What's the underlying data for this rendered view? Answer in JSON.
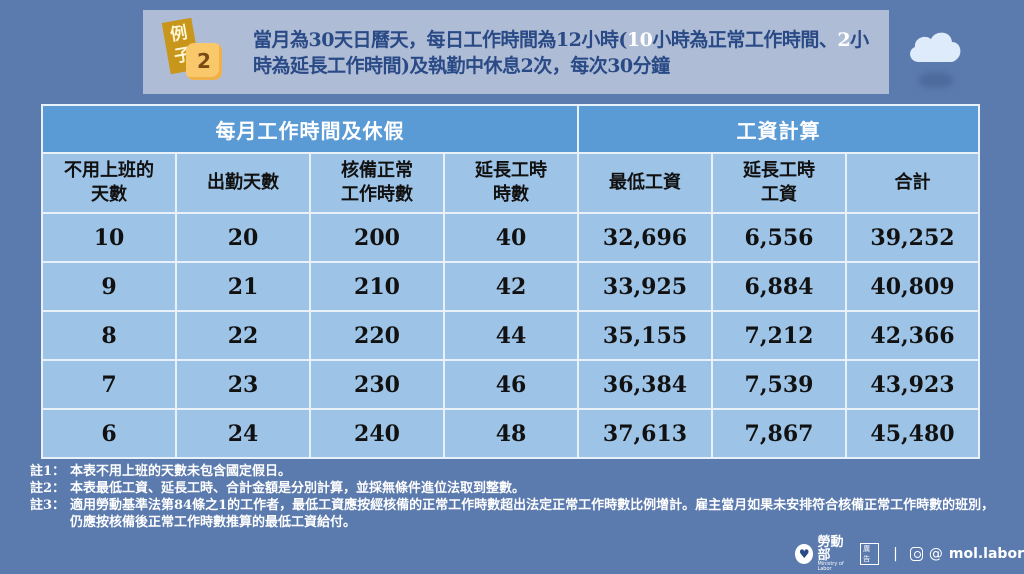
{
  "banner": {
    "tag_label": "例子",
    "tag_number": "2",
    "text_parts": [
      {
        "t": "當月為30天日曆天，每日工作時間為12小時(",
        "hl": false
      },
      {
        "t": "10",
        "hl": true
      },
      {
        "t": "小時為正常工作時間、",
        "hl": false
      },
      {
        "t": "2",
        "hl": true
      },
      {
        "t": "小時為延長工作時間)及執勤中休息2次，每次30分鐘",
        "hl": false
      }
    ]
  },
  "table": {
    "groups": [
      {
        "label": "每月工作時間及休假",
        "span": 4
      },
      {
        "label": "工資計算",
        "span": 3
      }
    ],
    "columns": [
      {
        "line1": "不用上班的",
        "line2": "天數"
      },
      {
        "line1": "出勤天數",
        "line2": ""
      },
      {
        "line1": "核備正常",
        "line2": "工作時數"
      },
      {
        "line1": "延長工時",
        "line2": "時數"
      },
      {
        "line1": "最低工資",
        "line2": ""
      },
      {
        "line1": "延長工時",
        "line2": "工資"
      },
      {
        "line1": "合計",
        "line2": ""
      }
    ],
    "rows": [
      [
        "10",
        "20",
        "200",
        "40",
        "32,696",
        "6,556",
        "39,252"
      ],
      [
        "9",
        "21",
        "210",
        "42",
        "33,925",
        "6,884",
        "40,809"
      ],
      [
        "8",
        "22",
        "220",
        "44",
        "35,155",
        "7,212",
        "42,366"
      ],
      [
        "7",
        "23",
        "230",
        "46",
        "36,384",
        "7,539",
        "43,923"
      ],
      [
        "6",
        "24",
        "240",
        "48",
        "37,613",
        "7,867",
        "45,480"
      ]
    ]
  },
  "notes": [
    {
      "label": "註1：",
      "text": "本表不用上班的天數未包含國定假日。"
    },
    {
      "label": "註2：",
      "text": "本表最低工資、延長工時、合計金額是分別計算，並採無條件進位法取到整數。"
    },
    {
      "label": "註3：",
      "text": "適用勞動基準法第84條之1的工作者，最低工資應按經核備的正常工作時數超出法定正常工作時數比例增計。雇主當月如果未安排符合核備正常工作時數的班別，仍應按核備後正常工作時數推算的最低工資給付。"
    }
  ],
  "footer": {
    "org_name": "勞動部",
    "org_name_en": "Ministry of Labor",
    "ad_badge": "廣告",
    "separator": "|",
    "threads_glyph": "@",
    "handle": "mol.labor"
  },
  "colors": {
    "background": "#5b7aad",
    "banner": "#aebcd6",
    "group_header": "#5b9bd5",
    "cell": "#9dc3e6",
    "tag_ex": "#c9961c",
    "tag_num": "#f9c86a"
  }
}
